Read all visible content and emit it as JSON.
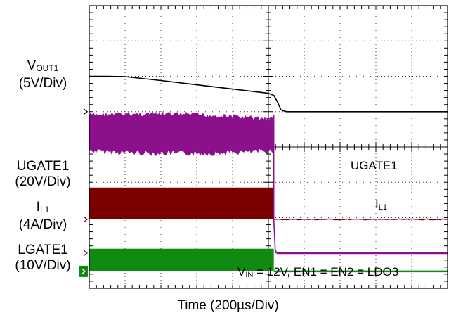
{
  "chart_data": {
    "type": "line",
    "title": "",
    "xlabel": "Time (200µs/Div)",
    "grid": true,
    "time_per_div_us": 200,
    "x_divisions": 10,
    "y_divisions": 8,
    "channels": [
      {
        "id": "vout1",
        "label_main": "V",
        "label_sub": "OUT1",
        "scale": "(5V/Div)",
        "color": "#000000",
        "ground_div": 5.0,
        "description_values": {
          "start_div_level": 6.0,
          "end_div_level": 5.0,
          "drop_time_div": 5.25
        },
        "x_div": [
          0,
          0.5,
          1,
          2,
          3,
          4,
          5,
          5.15,
          5.25,
          5.35,
          5.5,
          10
        ],
        "y_div": [
          6.0,
          6.0,
          5.99,
          5.88,
          5.76,
          5.64,
          5.52,
          5.46,
          5.28,
          5.05,
          5.0,
          5.0
        ]
      },
      {
        "id": "ugate1",
        "label_main": "UGATE1",
        "label_sub": "",
        "scale": "(20V/Div)",
        "color": "#7a0000",
        "ground_div": 1.95,
        "switching_top_div": 2.85,
        "switching_until_div": 5.15,
        "after_level_div": 1.95,
        "trace_label": "UGATE1"
      },
      {
        "id": "il1",
        "label_main": "I",
        "label_sub": "L1",
        "scale": "(4A/Div)",
        "color": "#8c0f8c",
        "ground_div": 1.0,
        "ripple_band_div": [
          3.9,
          4.9
        ],
        "switching_until_div": 5.15,
        "after_level_div": 1.0,
        "trace_label_main": "I",
        "trace_label_sub": "L1"
      },
      {
        "id": "lgate1",
        "label_main": "LGATE1",
        "label_sub": "",
        "scale": "(10V/Div)",
        "color": "#118a11",
        "ground_div": 0.48,
        "switching_top_div": 1.12,
        "switching_until_div": 5.15,
        "after_level_div": 0.48
      }
    ],
    "annotation": {
      "parts": [
        "V",
        "IN",
        " = 12V, EN1 = EN2 = LDO3"
      ]
    }
  }
}
